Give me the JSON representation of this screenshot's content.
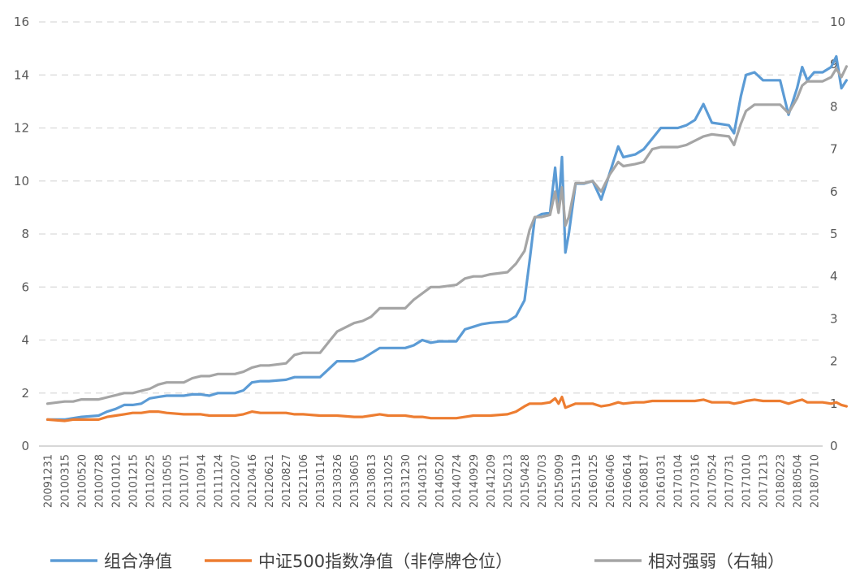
{
  "chart_data": {
    "type": "line",
    "title": "",
    "xlabel": "",
    "ylabel": "",
    "y2label": "",
    "ylim": [
      0,
      16
    ],
    "y2lim": [
      0,
      10
    ],
    "y_ticks": [
      "0",
      "2",
      "4",
      "6",
      "8",
      "10",
      "12",
      "14",
      "16"
    ],
    "y2_ticks": [
      "0",
      "1",
      "2",
      "3",
      "4",
      "5",
      "6",
      "7",
      "8",
      "9",
      "10"
    ],
    "grid": true,
    "legend_position": "bottom",
    "x_tick_labels": [
      "20091231",
      "20100315",
      "20100520",
      "20100728",
      "20101012",
      "20101215",
      "20110225",
      "20110505",
      "20110711",
      "20110914",
      "20111124",
      "20120207",
      "20120416",
      "20120621",
      "20120827",
      "20121106",
      "20130114",
      "20130326",
      "20130605",
      "20130813",
      "20131025",
      "20131230",
      "20140312",
      "20140520",
      "20140724",
      "20140929",
      "20141209",
      "20150213",
      "20150428",
      "20150703",
      "20150909",
      "20151119",
      "20160125",
      "20160406",
      "20160614",
      "20160817",
      "20161031",
      "20170104",
      "20170316",
      "20170524",
      "20170731",
      "20171010",
      "20171213",
      "20180223",
      "20180504",
      "20180710"
    ],
    "series": [
      {
        "name": "组合净值",
        "axis": "left",
        "color": "#5b9bd5",
        "points": [
          [
            0,
            1.0
          ],
          [
            1,
            1.0
          ],
          [
            1.5,
            1.05
          ],
          [
            2,
            1.1
          ],
          [
            3,
            1.15
          ],
          [
            3.5,
            1.3
          ],
          [
            4,
            1.4
          ],
          [
            4.5,
            1.55
          ],
          [
            5,
            1.55
          ],
          [
            5.5,
            1.6
          ],
          [
            6,
            1.8
          ],
          [
            6.5,
            1.85
          ],
          [
            7,
            1.9
          ],
          [
            8,
            1.9
          ],
          [
            8.5,
            1.95
          ],
          [
            9,
            1.95
          ],
          [
            9.5,
            1.9
          ],
          [
            10,
            2.0
          ],
          [
            11,
            2.0
          ],
          [
            11.5,
            2.1
          ],
          [
            12,
            2.4
          ],
          [
            12.5,
            2.45
          ],
          [
            13,
            2.45
          ],
          [
            14,
            2.5
          ],
          [
            14.5,
            2.6
          ],
          [
            15,
            2.6
          ],
          [
            16,
            2.6
          ],
          [
            16.5,
            2.9
          ],
          [
            17,
            3.2
          ],
          [
            18,
            3.2
          ],
          [
            18.5,
            3.3
          ],
          [
            19,
            3.5
          ],
          [
            19.5,
            3.7
          ],
          [
            20,
            3.7
          ],
          [
            21,
            3.7
          ],
          [
            21.5,
            3.8
          ],
          [
            22,
            4.0
          ],
          [
            22.5,
            3.9
          ],
          [
            23,
            3.95
          ],
          [
            24,
            3.95
          ],
          [
            24.5,
            4.4
          ],
          [
            25,
            4.5
          ],
          [
            25.5,
            4.6
          ],
          [
            26,
            4.65
          ],
          [
            27,
            4.7
          ],
          [
            27.5,
            4.9
          ],
          [
            28,
            5.5
          ],
          [
            28.3,
            7.0
          ],
          [
            28.6,
            8.6
          ],
          [
            29,
            8.75
          ],
          [
            29.5,
            8.8
          ],
          [
            29.8,
            10.5
          ],
          [
            30,
            9.0
          ],
          [
            30.2,
            10.9
          ],
          [
            30.4,
            7.3
          ],
          [
            30.6,
            8.0
          ],
          [
            31,
            9.9
          ],
          [
            31.5,
            9.9
          ],
          [
            32,
            10.0
          ],
          [
            32.5,
            9.3
          ],
          [
            33,
            10.3
          ],
          [
            33.5,
            11.3
          ],
          [
            33.8,
            10.9
          ],
          [
            34.5,
            11.0
          ],
          [
            35,
            11.2
          ],
          [
            35.5,
            11.6
          ],
          [
            36,
            12.0
          ],
          [
            36.5,
            12.0
          ],
          [
            37,
            12.0
          ],
          [
            37.5,
            12.1
          ],
          [
            38,
            12.3
          ],
          [
            38.5,
            12.9
          ],
          [
            39,
            12.2
          ],
          [
            40,
            12.1
          ],
          [
            40.3,
            11.8
          ],
          [
            40.7,
            13.2
          ],
          [
            41,
            14.0
          ],
          [
            41.5,
            14.1
          ],
          [
            42,
            13.8
          ],
          [
            42.5,
            13.8
          ],
          [
            43,
            13.8
          ],
          [
            43.5,
            12.5
          ],
          [
            44,
            13.5
          ],
          [
            44.3,
            14.3
          ],
          [
            44.6,
            13.8
          ],
          [
            45,
            14.1
          ],
          [
            45.5,
            14.1
          ],
          [
            46,
            14.3
          ],
          [
            46.3,
            14.7
          ],
          [
            46.6,
            13.5
          ],
          [
            46.9,
            13.8
          ]
        ]
      },
      {
        "name": "中证500指数净值（非停牌仓位）",
        "axis": "left",
        "color": "#ed7d31",
        "points": [
          [
            0,
            1.0
          ],
          [
            1,
            0.95
          ],
          [
            1.5,
            1.0
          ],
          [
            2,
            1.0
          ],
          [
            3,
            1.0
          ],
          [
            3.5,
            1.1
          ],
          [
            4,
            1.15
          ],
          [
            4.5,
            1.2
          ],
          [
            5,
            1.25
          ],
          [
            5.5,
            1.25
          ],
          [
            6,
            1.3
          ],
          [
            6.5,
            1.3
          ],
          [
            7,
            1.25
          ],
          [
            8,
            1.2
          ],
          [
            8.5,
            1.2
          ],
          [
            9,
            1.2
          ],
          [
            9.5,
            1.15
          ],
          [
            10,
            1.15
          ],
          [
            11,
            1.15
          ],
          [
            11.5,
            1.2
          ],
          [
            12,
            1.3
          ],
          [
            12.5,
            1.25
          ],
          [
            13,
            1.25
          ],
          [
            14,
            1.25
          ],
          [
            14.5,
            1.2
          ],
          [
            15,
            1.2
          ],
          [
            16,
            1.15
          ],
          [
            16.5,
            1.15
          ],
          [
            17,
            1.15
          ],
          [
            18,
            1.1
          ],
          [
            18.5,
            1.1
          ],
          [
            19,
            1.15
          ],
          [
            19.5,
            1.2
          ],
          [
            20,
            1.15
          ],
          [
            21,
            1.15
          ],
          [
            21.5,
            1.1
          ],
          [
            22,
            1.1
          ],
          [
            22.5,
            1.05
          ],
          [
            23,
            1.05
          ],
          [
            24,
            1.05
          ],
          [
            24.5,
            1.1
          ],
          [
            25,
            1.15
          ],
          [
            25.5,
            1.15
          ],
          [
            26,
            1.15
          ],
          [
            27,
            1.2
          ],
          [
            27.5,
            1.3
          ],
          [
            28,
            1.5
          ],
          [
            28.3,
            1.6
          ],
          [
            28.6,
            1.6
          ],
          [
            29,
            1.6
          ],
          [
            29.5,
            1.65
          ],
          [
            29.8,
            1.8
          ],
          [
            30,
            1.6
          ],
          [
            30.2,
            1.85
          ],
          [
            30.4,
            1.45
          ],
          [
            30.6,
            1.5
          ],
          [
            31,
            1.6
          ],
          [
            31.5,
            1.6
          ],
          [
            32,
            1.6
          ],
          [
            32.5,
            1.5
          ],
          [
            33,
            1.55
          ],
          [
            33.5,
            1.65
          ],
          [
            33.8,
            1.6
          ],
          [
            34.5,
            1.65
          ],
          [
            35,
            1.65
          ],
          [
            35.5,
            1.7
          ],
          [
            36,
            1.7
          ],
          [
            36.5,
            1.7
          ],
          [
            37,
            1.7
          ],
          [
            37.5,
            1.7
          ],
          [
            38,
            1.7
          ],
          [
            38.5,
            1.75
          ],
          [
            39,
            1.65
          ],
          [
            40,
            1.65
          ],
          [
            40.3,
            1.6
          ],
          [
            40.7,
            1.65
          ],
          [
            41,
            1.7
          ],
          [
            41.5,
            1.75
          ],
          [
            42,
            1.7
          ],
          [
            42.5,
            1.7
          ],
          [
            43,
            1.7
          ],
          [
            43.5,
            1.6
          ],
          [
            44,
            1.7
          ],
          [
            44.3,
            1.75
          ],
          [
            44.6,
            1.65
          ],
          [
            45,
            1.65
          ],
          [
            45.5,
            1.65
          ],
          [
            46,
            1.6
          ],
          [
            46.3,
            1.65
          ],
          [
            46.6,
            1.55
          ],
          [
            46.9,
            1.5
          ]
        ]
      },
      {
        "name": "相对强弱（右轴）",
        "axis": "right",
        "color": "#a5a5a5",
        "points": [
          [
            0,
            1.0
          ],
          [
            1,
            1.05
          ],
          [
            1.5,
            1.05
          ],
          [
            2,
            1.1
          ],
          [
            3,
            1.1
          ],
          [
            3.5,
            1.15
          ],
          [
            4,
            1.2
          ],
          [
            4.5,
            1.25
          ],
          [
            5,
            1.25
          ],
          [
            5.5,
            1.3
          ],
          [
            6,
            1.35
          ],
          [
            6.5,
            1.45
          ],
          [
            7,
            1.5
          ],
          [
            8,
            1.5
          ],
          [
            8.5,
            1.6
          ],
          [
            9,
            1.65
          ],
          [
            9.5,
            1.65
          ],
          [
            10,
            1.7
          ],
          [
            11,
            1.7
          ],
          [
            11.5,
            1.75
          ],
          [
            12,
            1.85
          ],
          [
            12.5,
            1.9
          ],
          [
            13,
            1.9
          ],
          [
            14,
            1.95
          ],
          [
            14.5,
            2.15
          ],
          [
            15,
            2.2
          ],
          [
            16,
            2.2
          ],
          [
            16.5,
            2.45
          ],
          [
            17,
            2.7
          ],
          [
            18,
            2.9
          ],
          [
            18.5,
            2.95
          ],
          [
            19,
            3.05
          ],
          [
            19.5,
            3.25
          ],
          [
            20,
            3.25
          ],
          [
            21,
            3.25
          ],
          [
            21.5,
            3.45
          ],
          [
            22,
            3.6
          ],
          [
            22.5,
            3.75
          ],
          [
            23,
            3.75
          ],
          [
            24,
            3.8
          ],
          [
            24.5,
            3.95
          ],
          [
            25,
            4.0
          ],
          [
            25.5,
            4.0
          ],
          [
            26,
            4.05
          ],
          [
            27,
            4.1
          ],
          [
            27.5,
            4.3
          ],
          [
            28,
            4.6
          ],
          [
            28.3,
            5.1
          ],
          [
            28.6,
            5.4
          ],
          [
            29,
            5.4
          ],
          [
            29.5,
            5.45
          ],
          [
            29.8,
            6.0
          ],
          [
            30,
            5.5
          ],
          [
            30.2,
            6.1
          ],
          [
            30.4,
            5.2
          ],
          [
            30.6,
            5.4
          ],
          [
            31,
            6.2
          ],
          [
            31.5,
            6.2
          ],
          [
            32,
            6.25
          ],
          [
            32.5,
            6.0
          ],
          [
            33,
            6.4
          ],
          [
            33.5,
            6.7
          ],
          [
            33.8,
            6.6
          ],
          [
            34.5,
            6.65
          ],
          [
            35,
            6.7
          ],
          [
            35.5,
            7.0
          ],
          [
            36,
            7.05
          ],
          [
            36.5,
            7.05
          ],
          [
            37,
            7.05
          ],
          [
            37.5,
            7.1
          ],
          [
            38,
            7.2
          ],
          [
            38.5,
            7.3
          ],
          [
            39,
            7.35
          ],
          [
            40,
            7.3
          ],
          [
            40.3,
            7.1
          ],
          [
            40.7,
            7.6
          ],
          [
            41,
            7.9
          ],
          [
            41.5,
            8.05
          ],
          [
            42,
            8.05
          ],
          [
            42.5,
            8.05
          ],
          [
            43,
            8.05
          ],
          [
            43.5,
            7.85
          ],
          [
            44,
            8.2
          ],
          [
            44.3,
            8.5
          ],
          [
            44.6,
            8.6
          ],
          [
            45,
            8.6
          ],
          [
            45.5,
            8.6
          ],
          [
            46,
            8.7
          ],
          [
            46.3,
            8.9
          ],
          [
            46.6,
            8.7
          ],
          [
            46.9,
            8.95
          ]
        ]
      }
    ]
  }
}
